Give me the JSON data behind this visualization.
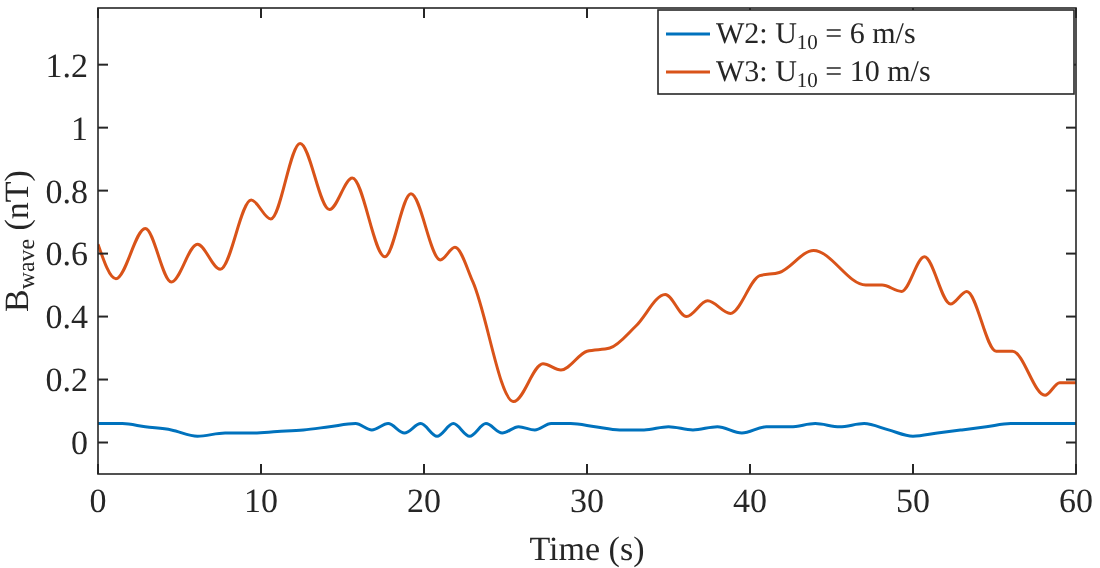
{
  "chart_data": {
    "type": "line",
    "xlabel": "Time (s)",
    "ylabel": "B$_{wave}$ (nT)",
    "xlim": [
      0,
      60
    ],
    "xticks": [
      0,
      10,
      20,
      30,
      40,
      50,
      60
    ],
    "ylim": [
      -0.1,
      1.38
    ],
    "yticks": [
      0,
      0.2,
      0.4,
      0.6,
      0.8,
      1,
      1.2
    ],
    "legend": "top right",
    "grid": false,
    "line_style": "solid",
    "marker": "none",
    "series": [
      {
        "name": "W2: U$_{10}$ = 6 m/s",
        "color": "#0072bd",
        "x": [
          0,
          1.5,
          2.9,
          4.5,
          6.1,
          7.8,
          9.4,
          11,
          12.6,
          14.2,
          15.8,
          16.8,
          17.8,
          18.8,
          19.8,
          20.8,
          21.8,
          22.8,
          23.8,
          24.8,
          25.8,
          26.8,
          27.8,
          29,
          30.5,
          32,
          33.5,
          35,
          36.5,
          38,
          39.5,
          41,
          42.5,
          44,
          45.5,
          47,
          48.5,
          50,
          51.5,
          53,
          54.5,
          56,
          57.5,
          59,
          60
        ],
        "values": [
          0.06,
          0.06,
          0.05,
          0.04,
          0.02,
          0.03,
          0.03,
          0.035,
          0.04,
          0.05,
          0.06,
          0.04,
          0.06,
          0.03,
          0.06,
          0.02,
          0.06,
          0.02,
          0.06,
          0.03,
          0.05,
          0.04,
          0.06,
          0.06,
          0.05,
          0.04,
          0.04,
          0.05,
          0.04,
          0.05,
          0.03,
          0.05,
          0.05,
          0.06,
          0.05,
          0.06,
          0.04,
          0.02,
          0.03,
          0.04,
          0.05,
          0.06,
          0.06,
          0.06,
          0.06
        ]
      },
      {
        "name": "W3: U$_{10}$ = 10 m/s",
        "color": "#d95319",
        "x": [
          0,
          1.1,
          2.9,
          4.5,
          6.1,
          7.5,
          9.4,
          10.6,
          12.4,
          14.2,
          15.6,
          17.6,
          19.2,
          21.0,
          21.9,
          23.0,
          25.5,
          27.3,
          28.4,
          30.0,
          31.4,
          33.0,
          34.8,
          36.1,
          37.4,
          38.8,
          40.6,
          41.8,
          43.9,
          47.1,
          48.1,
          49.3,
          50.7,
          52.3,
          53.3,
          55.1,
          56.1,
          58.1,
          59.0,
          60
        ],
        "values": [
          0.63,
          0.52,
          0.68,
          0.51,
          0.63,
          0.55,
          0.77,
          0.71,
          0.95,
          0.74,
          0.84,
          0.59,
          0.79,
          0.58,
          0.62,
          0.51,
          0.13,
          0.25,
          0.23,
          0.29,
          0.3,
          0.37,
          0.47,
          0.4,
          0.45,
          0.41,
          0.53,
          0.54,
          0.61,
          0.5,
          0.5,
          0.48,
          0.59,
          0.44,
          0.48,
          0.29,
          0.29,
          0.15,
          0.19,
          0.19
        ]
      }
    ]
  }
}
